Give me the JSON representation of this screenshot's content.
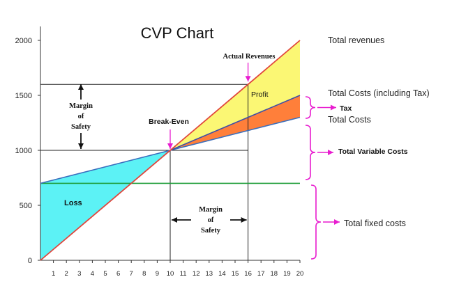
{
  "chart_data": {
    "type": "line",
    "title": "CVP Chart",
    "xlabel": "",
    "ylabel": "",
    "xlim": [
      0,
      20
    ],
    "ylim": [
      0,
      2000
    ],
    "xticks": [
      1,
      2,
      3,
      4,
      5,
      6,
      7,
      8,
      9,
      10,
      11,
      12,
      13,
      14,
      15,
      16,
      17,
      18,
      19,
      20
    ],
    "yticks": [
      0,
      500,
      1000,
      1500,
      2000
    ],
    "grid": false,
    "series": [
      {
        "name": "Total revenues",
        "x": [
          0,
          20
        ],
        "y": [
          0,
          2000
        ],
        "color": "#e0453c"
      },
      {
        "name": "Total Costs (including Tax)",
        "x": [
          10,
          20
        ],
        "y": [
          1000,
          1500
        ],
        "color": "#3d4fa8"
      },
      {
        "name": "Total Costs",
        "x": [
          0,
          10,
          20
        ],
        "y": [
          700,
          1000,
          1300
        ],
        "color": "#3a6ebd"
      },
      {
        "name": "Total fixed costs",
        "x": [
          0,
          20
        ],
        "y": [
          700,
          700
        ],
        "color": "#1f9e3a"
      }
    ],
    "fills": {
      "loss_color": "#5cf2f5",
      "profit_color": "#fbf774",
      "tax_color": "#ff7f3a"
    },
    "reference": {
      "break_even": {
        "x": 10,
        "y": 1000
      },
      "actual": {
        "x": 16,
        "y": 1600
      }
    },
    "annotations": {
      "loss": "Loss",
      "profit": "Profit",
      "break_even": "Break-Even",
      "actual_revenues": "Actual Revenues",
      "margin_of_safety_left": [
        "Margin",
        "of",
        "Safety"
      ],
      "margin_of_safety_bottom": [
        "Margin",
        "of",
        "Safety"
      ]
    },
    "right_labels": {
      "total_revenues": "Total revenues",
      "total_costs_incl_tax": "Total Costs (including Tax)",
      "tax": "Tax",
      "total_costs": "Total Costs",
      "total_variable_costs": "Total Variable Costs",
      "total_fixed_costs": "Total fixed costs"
    },
    "colors": {
      "axis": "#333333",
      "ref_line": "#222222",
      "brace": "#e81ccf",
      "arrow_pink": "#e81ccf"
    }
  }
}
